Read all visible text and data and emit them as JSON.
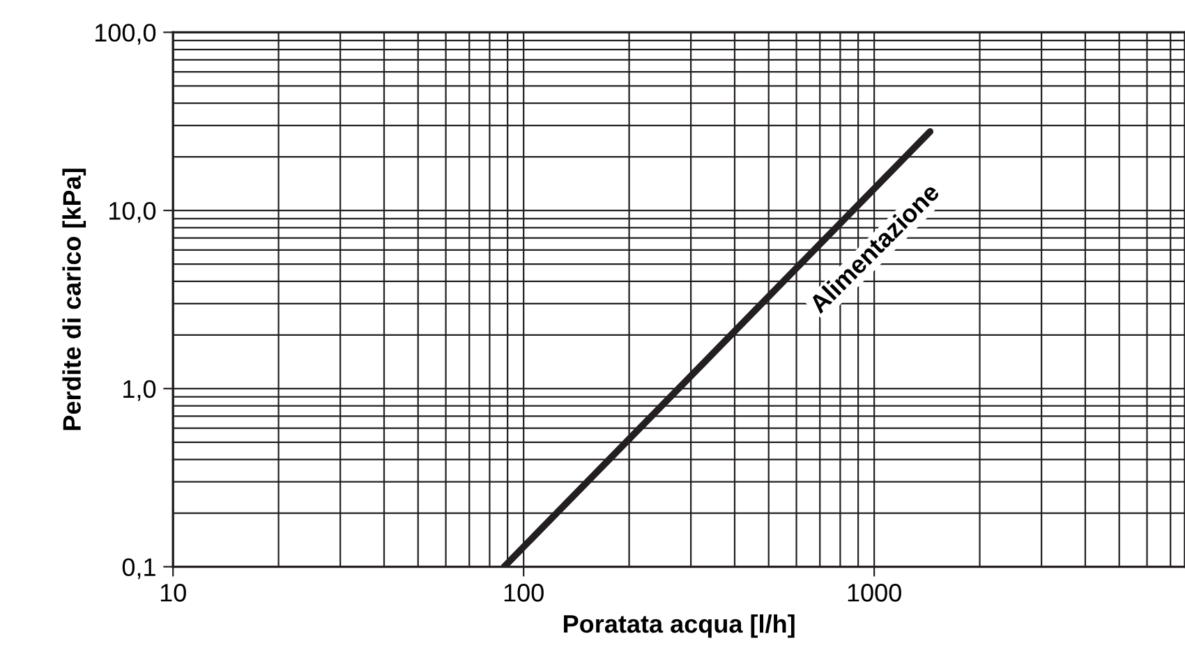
{
  "chart_data": {
    "type": "line",
    "xlabel": "Poratata acqua [l/h]",
    "ylabel": "Perdite di carico [kPa]",
    "log": "xy",
    "grid": true,
    "xlim": [
      10,
      7700
    ],
    "ylim": [
      0.1,
      100
    ],
    "xticks": [
      10,
      100,
      1000
    ],
    "yticks": [
      {
        "value": 0.1,
        "label": "0,1"
      },
      {
        "value": 1,
        "label": "1,0"
      },
      {
        "value": 10,
        "label": "10,0"
      },
      {
        "value": 100,
        "label": "100,0"
      }
    ],
    "x": [
      88,
      1443
    ],
    "series": [
      {
        "color": "#231f20",
        "values": [
          0.1,
          27.7
        ]
      }
    ],
    "annotations": [
      "Alimentazione"
    ]
  }
}
